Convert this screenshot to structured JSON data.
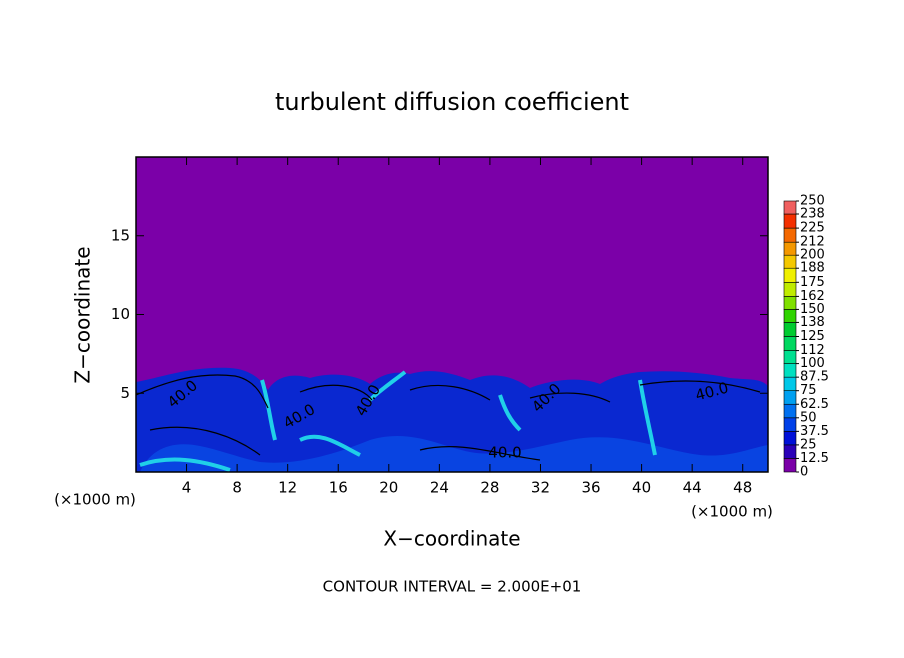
{
  "chart_data": {
    "type": "contour",
    "title": "turbulent diffusion coefficient",
    "xlabel": "X−coordinate",
    "ylabel": "Z−coordinate",
    "x_unit": "(×1000 m)",
    "y_unit": "(×1000 m)",
    "footer": "CONTOUR INTERVAL = 2.000E+01",
    "xlim": [
      0,
      50
    ],
    "xticks": [
      4,
      8,
      12,
      16,
      20,
      24,
      28,
      32,
      36,
      40,
      44,
      48
    ],
    "ylim": [
      0,
      20
    ],
    "yticks": [
      5,
      10,
      15
    ],
    "background_color": "#7b00a8",
    "contour_labels": [
      "40.0",
      "40.0",
      "40.0",
      "40.0",
      "40.0",
      "40.0"
    ],
    "colorbar": {
      "ticks": [
        0,
        12.5,
        25,
        37.5,
        50,
        62.5,
        75,
        87.5,
        100,
        112,
        125,
        138,
        150,
        162,
        175,
        188,
        200,
        212,
        225,
        238,
        250
      ],
      "colors": [
        "#7b00a8",
        "#2a00b8",
        "#0010d8",
        "#0040e8",
        "#0070f0",
        "#00a0f0",
        "#00c8e8",
        "#00e0c0",
        "#00e090",
        "#00d860",
        "#00cc30",
        "#30d400",
        "#80e000",
        "#c0ec00",
        "#f0f000",
        "#f4c800",
        "#f49800",
        "#f46800",
        "#f43000",
        "#f06060"
      ]
    }
  }
}
